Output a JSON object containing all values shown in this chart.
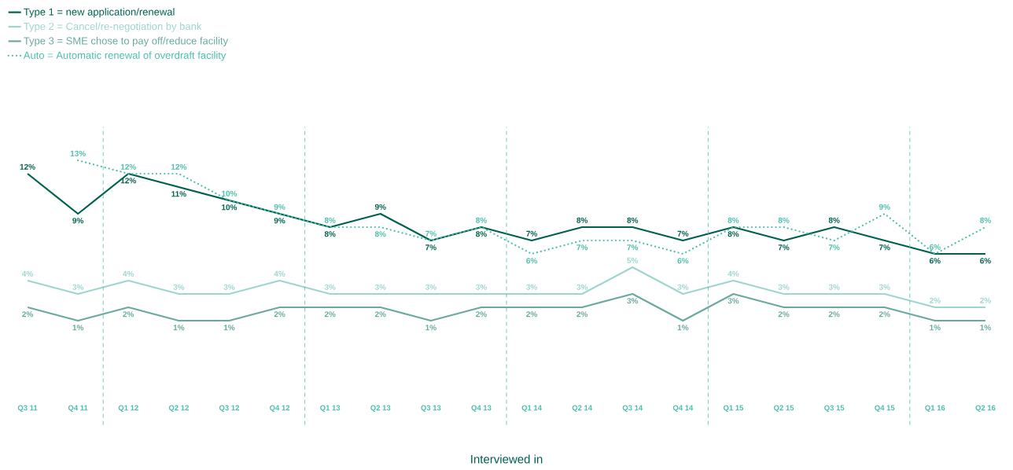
{
  "chart_data": {
    "type": "line",
    "xlabel": "Interviewed in",
    "legend": "top left",
    "tick_labels": "x",
    "categories": [
      "Q3 11",
      "Q4 11",
      "Q1 12",
      "Q2 12",
      "Q3 12",
      "Q4 12",
      "Q1 13",
      "Q2 13",
      "Q3 13",
      "Q4 13",
      "Q1 14",
      "Q2 14",
      "Q3 14",
      "Q4 14",
      "Q1 15",
      "Q2 15",
      "Q3 15",
      "Q4 15",
      "Q1 16",
      "Q2 16"
    ],
    "series": [
      {
        "name": "Type 1 = new application/renewal",
        "color": "#00614f",
        "line_style": "solid",
        "values": [
          12,
          9,
          12,
          11,
          10,
          9,
          8,
          9,
          7,
          8,
          7,
          8,
          8,
          7,
          8,
          7,
          8,
          7,
          6,
          6
        ],
        "value_labels": [
          "12%",
          "9%",
          "12%",
          "11%",
          "10%",
          "9%",
          "8%",
          "9%",
          "7%",
          "8%",
          "7%",
          "8%",
          "8%",
          "7%",
          "8%",
          "7%",
          "8%",
          "7%",
          "6%",
          "6%"
        ]
      },
      {
        "name": "Type 2 = Cancel/re-negotiation by bank",
        "color": "#9ed6cf",
        "line_style": "solid",
        "values": [
          4,
          3,
          4,
          3,
          3,
          4,
          3,
          3,
          3,
          3,
          3,
          3,
          5,
          3,
          4,
          3,
          3,
          3,
          2,
          2
        ],
        "value_labels": [
          "4%",
          "3%",
          "4%",
          "3%",
          "3%",
          "4%",
          "3%",
          "3%",
          "3%",
          "3%",
          "3%",
          "3%",
          "5%",
          "3%",
          "4%",
          "3%",
          "3%",
          "3%",
          "2%",
          "2%"
        ]
      },
      {
        "name": "Type 3 = SME chose to pay off/reduce facility",
        "color": "#6aa9a0",
        "line_style": "solid",
        "values": [
          2,
          1,
          2,
          1,
          1,
          2,
          2,
          2,
          1,
          2,
          2,
          2,
          3,
          1,
          3,
          2,
          2,
          2,
          1,
          1
        ],
        "value_labels": [
          "2%",
          "1%",
          "2%",
          "1%",
          "1%",
          "2%",
          "2%",
          "2%",
          "1%",
          "2%",
          "2%",
          "2%",
          "3%",
          "1%",
          "3%",
          "2%",
          "2%",
          "2%",
          "1%",
          "1%"
        ]
      },
      {
        "name": "Auto = Automatic renewal of overdraft facility",
        "color": "#4dbfae",
        "line_style": "dotted",
        "values": [
          null,
          13,
          12,
          12,
          10,
          9,
          8,
          8,
          7,
          8,
          6,
          7,
          7,
          6,
          8,
          8,
          7,
          9,
          6,
          8
        ],
        "value_labels": [
          null,
          "13%",
          "12%",
          "12%",
          "10%",
          "9%",
          "8%",
          "8%",
          "7%",
          "8%",
          "6%",
          "7%",
          "7%",
          "6%",
          "8%",
          "8%",
          "7%",
          "9%",
          "6%",
          "8%"
        ]
      }
    ]
  }
}
